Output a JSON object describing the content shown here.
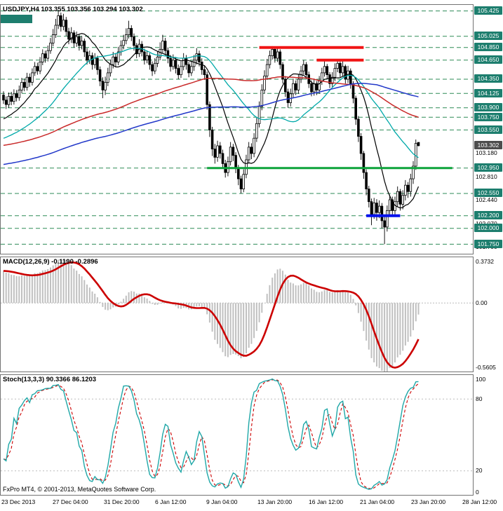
{
  "colors": {
    "badge_bg": "#1D7E6E",
    "current_badge_bg": "#4D4D4D",
    "dashed_level": "#2E8B57",
    "resistance_red": "#F01414",
    "support_green": "#0CA33A",
    "support_blue": "#0010EE",
    "candle_outline": "#000000",
    "bull_fill": "#FFFFFF",
    "bear_fill": "#000000",
    "macd_bar": "#C0C0C0",
    "macd_signal": "#CC0000",
    "stoch_k": "#20A8A8",
    "stoch_d": "#CC0000",
    "level_grid": "#BBBBBB"
  },
  "chart_data": [
    {
      "type": "candlestick",
      "symbol": "USDJPY",
      "timeframe": "H4",
      "label": "USDJPY,H4 103.355 103.356 103.294 103.302",
      "ohlc": {
        "open": "103.355",
        "high": "103.356",
        "low": "103.294",
        "close": "103.302"
      },
      "y_axis": {
        "max": 105.52,
        "min": 101.6,
        "badges": [
          "105.425",
          "105.025",
          "104.850",
          "104.650",
          "104.350",
          "104.125",
          "103.900",
          "103.750",
          "103.550",
          "102.950",
          "102.550",
          "102.200",
          "102.000",
          "101.750"
        ],
        "current_price": "103.302",
        "plain_ticks": [
          "103.180",
          "102.810",
          "102.440",
          "102.070",
          "101.700"
        ]
      },
      "x_axis": {
        "labels": [
          "23 Dec 2013",
          "27 Dec 04:00",
          "31 Dec 20:00",
          "6 Jan 12:00",
          "9 Jan 04:00",
          "13 Jan 20:00",
          "16 Jan 12:00",
          "21 Jan 04:00",
          "23 Jan 20:00",
          "28 Jan 12:00"
        ]
      },
      "overlays": {
        "moving_averages": [
          {
            "name": "ma-fast-black",
            "period": 13,
            "seed": 103.7,
            "color": "#000000",
            "width": 1.2
          },
          {
            "name": "ma-mid-cyan",
            "period": 34,
            "seed": 103.4,
            "color": "#00A9A9",
            "width": 1.3
          },
          {
            "name": "ma-slow-red",
            "period": 100,
            "seed": 103.3,
            "color": "#C92A2A",
            "width": 1.5
          },
          {
            "name": "ma-slowest-blue",
            "period": 144,
            "seed": 103.0,
            "color": "#2238C9",
            "width": 1.5
          }
        ],
        "segments": [
          {
            "name": "resistance-line-1",
            "price": 104.85,
            "from_idx": 98,
            "to_idx": 138,
            "color": "#F01414",
            "width": 4
          },
          {
            "name": "resistance-line-2",
            "price": 104.65,
            "from_idx": 120,
            "to_idx": 138,
            "color": "#F01414",
            "width": 4
          },
          {
            "name": "support-line-green",
            "price": 102.95,
            "from_idx": 78,
            "to_idx": 172,
            "color": "#0CA33A",
            "width": 3
          },
          {
            "name": "support-line-blue",
            "price": 102.2,
            "from_idx": 139,
            "to_idx": 152,
            "color": "#0010EE",
            "width": 4
          }
        ]
      },
      "candles": [
        [
          104.1,
          104.16,
          103.96,
          104.02
        ],
        [
          104.02,
          104.08,
          103.88,
          103.95
        ],
        [
          103.95,
          104.14,
          103.9,
          104.08
        ],
        [
          104.08,
          104.15,
          103.94,
          104.0
        ],
        [
          104.0,
          104.19,
          103.95,
          104.12
        ],
        [
          104.12,
          104.18,
          104.0,
          104.06
        ],
        [
          104.06,
          104.25,
          104.01,
          104.18
        ],
        [
          104.18,
          104.37,
          104.13,
          104.3
        ],
        [
          104.3,
          104.36,
          104.16,
          104.22
        ],
        [
          104.22,
          104.45,
          104.17,
          104.38
        ],
        [
          104.38,
          104.44,
          104.23,
          104.3
        ],
        [
          104.3,
          104.52,
          104.25,
          104.45
        ],
        [
          104.45,
          104.62,
          104.4,
          104.55
        ],
        [
          104.55,
          104.61,
          104.42,
          104.48
        ],
        [
          104.48,
          104.7,
          104.43,
          104.62
        ],
        [
          104.62,
          104.82,
          104.57,
          104.75
        ],
        [
          104.75,
          104.8,
          104.61,
          104.68
        ],
        [
          104.68,
          104.88,
          104.63,
          104.8
        ],
        [
          104.8,
          105.0,
          104.75,
          104.92
        ],
        [
          104.92,
          105.14,
          104.87,
          105.05
        ],
        [
          105.05,
          105.3,
          105.0,
          105.2
        ],
        [
          105.2,
          105.43,
          105.14,
          105.35
        ],
        [
          105.35,
          105.4,
          105.1,
          105.18
        ],
        [
          105.18,
          105.38,
          105.12,
          105.28
        ],
        [
          105.28,
          105.33,
          105.03,
          105.1
        ],
        [
          105.1,
          105.16,
          104.9,
          104.98
        ],
        [
          104.98,
          105.17,
          104.92,
          105.08
        ],
        [
          105.08,
          105.12,
          104.85,
          104.92
        ],
        [
          104.92,
          105.1,
          104.86,
          105.02
        ],
        [
          105.02,
          105.06,
          104.8,
          104.88
        ],
        [
          104.88,
          105.03,
          104.82,
          104.95
        ],
        [
          104.95,
          104.99,
          104.7,
          104.78
        ],
        [
          104.78,
          104.84,
          104.58,
          104.65
        ],
        [
          104.65,
          104.8,
          104.59,
          104.72
        ],
        [
          104.72,
          104.77,
          104.5,
          104.58
        ],
        [
          104.58,
          104.76,
          104.52,
          104.68
        ],
        [
          104.68,
          104.72,
          104.42,
          104.5
        ],
        [
          104.5,
          104.55,
          104.24,
          104.32
        ],
        [
          104.32,
          104.38,
          104.05,
          104.18
        ],
        [
          104.18,
          104.39,
          104.1,
          104.3
        ],
        [
          104.3,
          104.53,
          104.24,
          104.45
        ],
        [
          104.45,
          104.66,
          104.39,
          104.58
        ],
        [
          104.58,
          104.78,
          104.52,
          104.7
        ],
        [
          104.7,
          104.76,
          104.55,
          104.62
        ],
        [
          104.62,
          104.86,
          104.57,
          104.78
        ],
        [
          104.78,
          104.96,
          104.72,
          104.88
        ],
        [
          104.88,
          105.05,
          104.82,
          104.96
        ],
        [
          104.96,
          105.15,
          104.9,
          105.05
        ],
        [
          105.05,
          105.27,
          104.99,
          105.15
        ],
        [
          105.15,
          105.2,
          104.95,
          105.02
        ],
        [
          105.02,
          105.07,
          104.8,
          104.88
        ],
        [
          104.88,
          104.92,
          104.68,
          104.75
        ],
        [
          104.75,
          104.98,
          104.7,
          104.9
        ],
        [
          104.9,
          104.95,
          104.71,
          104.78
        ],
        [
          104.78,
          104.83,
          104.58,
          104.65
        ],
        [
          104.65,
          104.8,
          104.6,
          104.72
        ],
        [
          104.72,
          104.76,
          104.5,
          104.58
        ],
        [
          104.58,
          104.63,
          104.4,
          104.48
        ],
        [
          104.48,
          104.68,
          104.43,
          104.6
        ],
        [
          104.6,
          104.79,
          104.54,
          104.7
        ],
        [
          104.7,
          104.93,
          104.65,
          104.82
        ],
        [
          104.82,
          105.05,
          104.76,
          104.95
        ],
        [
          104.95,
          105.0,
          104.72,
          104.8
        ],
        [
          104.8,
          104.85,
          104.6,
          104.68
        ],
        [
          104.68,
          104.73,
          104.47,
          104.55
        ],
        [
          104.55,
          104.74,
          104.5,
          104.65
        ],
        [
          104.65,
          104.7,
          104.44,
          104.52
        ],
        [
          104.52,
          104.58,
          104.35,
          104.42
        ],
        [
          104.42,
          104.63,
          104.37,
          104.55
        ],
        [
          104.55,
          104.76,
          104.49,
          104.68
        ],
        [
          104.68,
          104.73,
          104.5,
          104.58
        ],
        [
          104.58,
          104.62,
          104.38,
          104.45
        ],
        [
          104.45,
          104.64,
          104.4,
          104.55
        ],
        [
          104.55,
          104.73,
          104.48,
          104.65
        ],
        [
          104.65,
          104.84,
          104.58,
          104.75
        ],
        [
          104.75,
          104.8,
          104.55,
          104.62
        ],
        [
          104.62,
          104.68,
          104.42,
          104.5
        ],
        [
          104.5,
          104.56,
          104.34,
          104.42
        ],
        [
          104.42,
          104.47,
          103.87,
          103.95
        ],
        [
          103.95,
          104.0,
          103.44,
          103.55
        ],
        [
          103.55,
          103.6,
          103.14,
          103.25
        ],
        [
          103.25,
          103.33,
          103.02,
          103.12
        ],
        [
          103.12,
          103.38,
          103.05,
          103.3
        ],
        [
          103.3,
          103.36,
          103.1,
          103.18
        ],
        [
          103.18,
          103.24,
          102.94,
          103.02
        ],
        [
          103.02,
          103.08,
          102.8,
          102.88
        ],
        [
          102.88,
          103.13,
          102.82,
          103.05
        ],
        [
          103.05,
          103.36,
          102.99,
          103.28
        ],
        [
          103.28,
          103.33,
          103.06,
          103.15
        ],
        [
          103.15,
          103.2,
          102.87,
          102.95
        ],
        [
          102.95,
          103.0,
          102.68,
          102.78
        ],
        [
          102.78,
          102.83,
          102.55,
          102.62
        ],
        [
          102.62,
          102.93,
          102.57,
          102.85
        ],
        [
          102.85,
          103.16,
          102.79,
          103.08
        ],
        [
          103.08,
          103.36,
          103.02,
          103.28
        ],
        [
          103.28,
          103.34,
          103.09,
          103.18
        ],
        [
          103.18,
          103.5,
          103.12,
          103.42
        ],
        [
          103.42,
          103.74,
          103.36,
          103.65
        ],
        [
          103.65,
          104.0,
          103.59,
          103.92
        ],
        [
          103.92,
          104.27,
          103.86,
          104.18
        ],
        [
          104.18,
          104.49,
          104.12,
          104.4
        ],
        [
          104.4,
          104.67,
          104.34,
          104.58
        ],
        [
          104.58,
          104.8,
          104.52,
          104.72
        ],
        [
          104.72,
          104.87,
          104.66,
          104.82
        ],
        [
          104.82,
          104.85,
          104.61,
          104.68
        ],
        [
          104.68,
          104.86,
          104.62,
          104.78
        ],
        [
          104.78,
          104.82,
          104.51,
          104.58
        ],
        [
          104.58,
          104.62,
          104.28,
          104.35
        ],
        [
          104.35,
          104.4,
          104.07,
          104.15
        ],
        [
          104.15,
          104.2,
          103.9,
          103.98
        ],
        [
          103.98,
          104.2,
          103.92,
          104.12
        ],
        [
          104.12,
          104.36,
          104.06,
          104.28
        ],
        [
          104.28,
          104.33,
          104.1,
          104.18
        ],
        [
          104.18,
          104.43,
          104.12,
          104.35
        ],
        [
          104.35,
          104.56,
          104.29,
          104.48
        ],
        [
          104.48,
          104.65,
          104.42,
          104.58
        ],
        [
          104.58,
          104.62,
          104.35,
          104.42
        ],
        [
          104.42,
          104.47,
          104.21,
          104.28
        ],
        [
          104.28,
          104.33,
          104.08,
          104.15
        ],
        [
          104.15,
          104.36,
          104.09,
          104.28
        ],
        [
          104.28,
          104.32,
          104.1,
          104.18
        ],
        [
          104.18,
          104.4,
          104.12,
          104.32
        ],
        [
          104.32,
          104.53,
          104.26,
          104.45
        ],
        [
          104.45,
          104.63,
          104.39,
          104.55
        ],
        [
          104.55,
          104.59,
          104.35,
          104.42
        ],
        [
          104.42,
          104.46,
          104.21,
          104.28
        ],
        [
          104.28,
          104.46,
          104.22,
          104.38
        ],
        [
          104.38,
          104.6,
          104.32,
          104.52
        ],
        [
          104.52,
          104.66,
          104.46,
          104.6
        ],
        [
          104.6,
          104.63,
          104.38,
          104.45
        ],
        [
          104.45,
          104.64,
          104.39,
          104.55
        ],
        [
          104.55,
          104.58,
          104.28,
          104.35
        ],
        [
          104.35,
          104.56,
          104.29,
          104.48
        ],
        [
          104.48,
          104.52,
          104.2,
          104.28
        ],
        [
          104.28,
          104.32,
          103.97,
          104.05
        ],
        [
          104.05,
          104.09,
          103.63,
          103.72
        ],
        [
          103.72,
          103.77,
          103.36,
          103.45
        ],
        [
          103.45,
          103.5,
          103.08,
          103.18
        ],
        [
          103.18,
          103.22,
          102.78,
          102.88
        ],
        [
          102.88,
          102.93,
          102.52,
          102.62
        ],
        [
          102.62,
          102.67,
          102.33,
          102.42
        ],
        [
          102.42,
          102.47,
          102.05,
          102.22
        ],
        [
          102.22,
          102.48,
          102.15,
          102.4
        ],
        [
          102.4,
          102.46,
          102.12,
          102.25
        ],
        [
          102.25,
          102.44,
          102.16,
          102.35
        ],
        [
          102.35,
          102.4,
          102.0,
          102.12
        ],
        [
          102.12,
          102.18,
          101.75,
          102.02
        ],
        [
          102.02,
          102.36,
          101.95,
          102.28
        ],
        [
          102.28,
          102.53,
          102.2,
          102.45
        ],
        [
          102.45,
          102.5,
          102.18,
          102.28
        ],
        [
          102.28,
          102.5,
          102.2,
          102.42
        ],
        [
          102.42,
          102.66,
          102.34,
          102.58
        ],
        [
          102.58,
          102.62,
          102.28,
          102.38
        ],
        [
          102.38,
          102.6,
          102.3,
          102.52
        ],
        [
          102.52,
          102.76,
          102.44,
          102.68
        ],
        [
          102.68,
          102.73,
          102.48,
          102.58
        ],
        [
          102.58,
          102.86,
          102.5,
          102.78
        ],
        [
          102.78,
          103.06,
          102.7,
          102.98
        ],
        [
          102.98,
          103.4,
          102.92,
          103.34
        ],
        [
          103.355,
          103.356,
          103.294,
          103.302
        ]
      ]
    },
    {
      "type": "macd",
      "label": "MACD(12,26,9) -0.1190 -0.2896",
      "params": {
        "fast_ema": 12,
        "slow_ema": 26,
        "signal": 9
      },
      "values": {
        "macd": -0.119,
        "signal": -0.2896
      },
      "y_axis": {
        "labels": [
          "0.3732",
          "0.00",
          "-0.5605"
        ],
        "max": 0.3732,
        "min": -0.5605
      }
    },
    {
      "type": "stochastic",
      "label": "Stoch(13,3,3) 90.3366 86.1203",
      "params": {
        "k_period": 13,
        "d_period": 3,
        "slowing": 3
      },
      "values": {
        "k": 90.3366,
        "d": 86.1203
      },
      "y_axis": {
        "labels": [
          "100",
          "80",
          "20",
          "0"
        ],
        "levels": [
          80,
          20
        ],
        "max": 100,
        "min": 0
      },
      "footer": "FxPro MT4, © 2001-2013, MetaQuotes Software Corp."
    }
  ]
}
